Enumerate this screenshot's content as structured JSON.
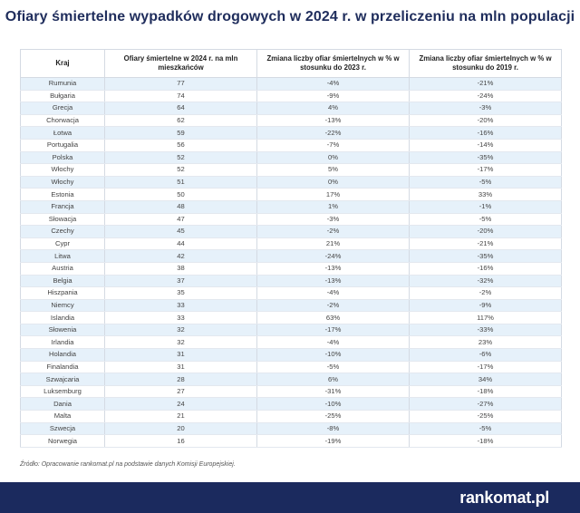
{
  "title": "Ofiary śmiertelne wypadków drogowych w 2024 r. w przeliczeniu na mln populacji",
  "source": "Źródło: Opracowanie rankomat.pl na podstawie danych Komisji Europejskiej.",
  "brand": {
    "logo_text": "rankomat.pl",
    "footer_color": "#1b2a5e",
    "accent_color": "#1f2d5c"
  },
  "chart_data": {
    "type": "table",
    "title": "Ofiary śmiertelne wypadków drogowych w 2024 r. w przeliczeniu na mln populacji",
    "columns": [
      "Kraj",
      "Ofiary śmiertelne w 2024 r. na mln mieszkańców",
      "Zmiana liczby ofiar śmiertelnych w % w stosunku do 2023 r.",
      "Zmiana liczby ofiar śmiertelnych w % w stosunku do 2019 r."
    ],
    "rows": [
      [
        "Rumunia",
        "77",
        "-4%",
        "-21%"
      ],
      [
        "Bułgaria",
        "74",
        "-9%",
        "-24%"
      ],
      [
        "Grecja",
        "64",
        "4%",
        "-3%"
      ],
      [
        "Chorwacja",
        "62",
        "-13%",
        "-20%"
      ],
      [
        "Łotwa",
        "59",
        "-22%",
        "-16%"
      ],
      [
        "Portugalia",
        "56",
        "-7%",
        "-14%"
      ],
      [
        "Polska",
        "52",
        "0%",
        "-35%"
      ],
      [
        "Włochy",
        "52",
        "5%",
        "-17%"
      ],
      [
        "Włochy",
        "51",
        "0%",
        "-5%"
      ],
      [
        "Estonia",
        "50",
        "17%",
        "33%"
      ],
      [
        "Francja",
        "48",
        "1%",
        "-1%"
      ],
      [
        "Słowacja",
        "47",
        "-3%",
        "-5%"
      ],
      [
        "Czechy",
        "45",
        "-2%",
        "-20%"
      ],
      [
        "Cypr",
        "44",
        "21%",
        "-21%"
      ],
      [
        "Litwa",
        "42",
        "-24%",
        "-35%"
      ],
      [
        "Austria",
        "38",
        "-13%",
        "-16%"
      ],
      [
        "Belgia",
        "37",
        "-13%",
        "-32%"
      ],
      [
        "Hiszpania",
        "35",
        "-4%",
        "-2%"
      ],
      [
        "Niemcy",
        "33",
        "-2%",
        "-9%"
      ],
      [
        "Islandia",
        "33",
        "63%",
        "117%"
      ],
      [
        "Słowenia",
        "32",
        "-17%",
        "-33%"
      ],
      [
        "Irlandia",
        "32",
        "-4%",
        "23%"
      ],
      [
        "Holandia",
        "31",
        "-10%",
        "-6%"
      ],
      [
        "Finalandia",
        "31",
        "-5%",
        "-17%"
      ],
      [
        "Szwajcaria",
        "28",
        "6%",
        "34%"
      ],
      [
        "Luksemburg",
        "27",
        "-31%",
        "-18%"
      ],
      [
        "Dania",
        "24",
        "-10%",
        "-27%"
      ],
      [
        "Malta",
        "21",
        "-25%",
        "-25%"
      ],
      [
        "Szwecja",
        "20",
        "-8%",
        "-5%"
      ],
      [
        "Norwegia",
        "16",
        "-19%",
        "-18%"
      ]
    ]
  }
}
